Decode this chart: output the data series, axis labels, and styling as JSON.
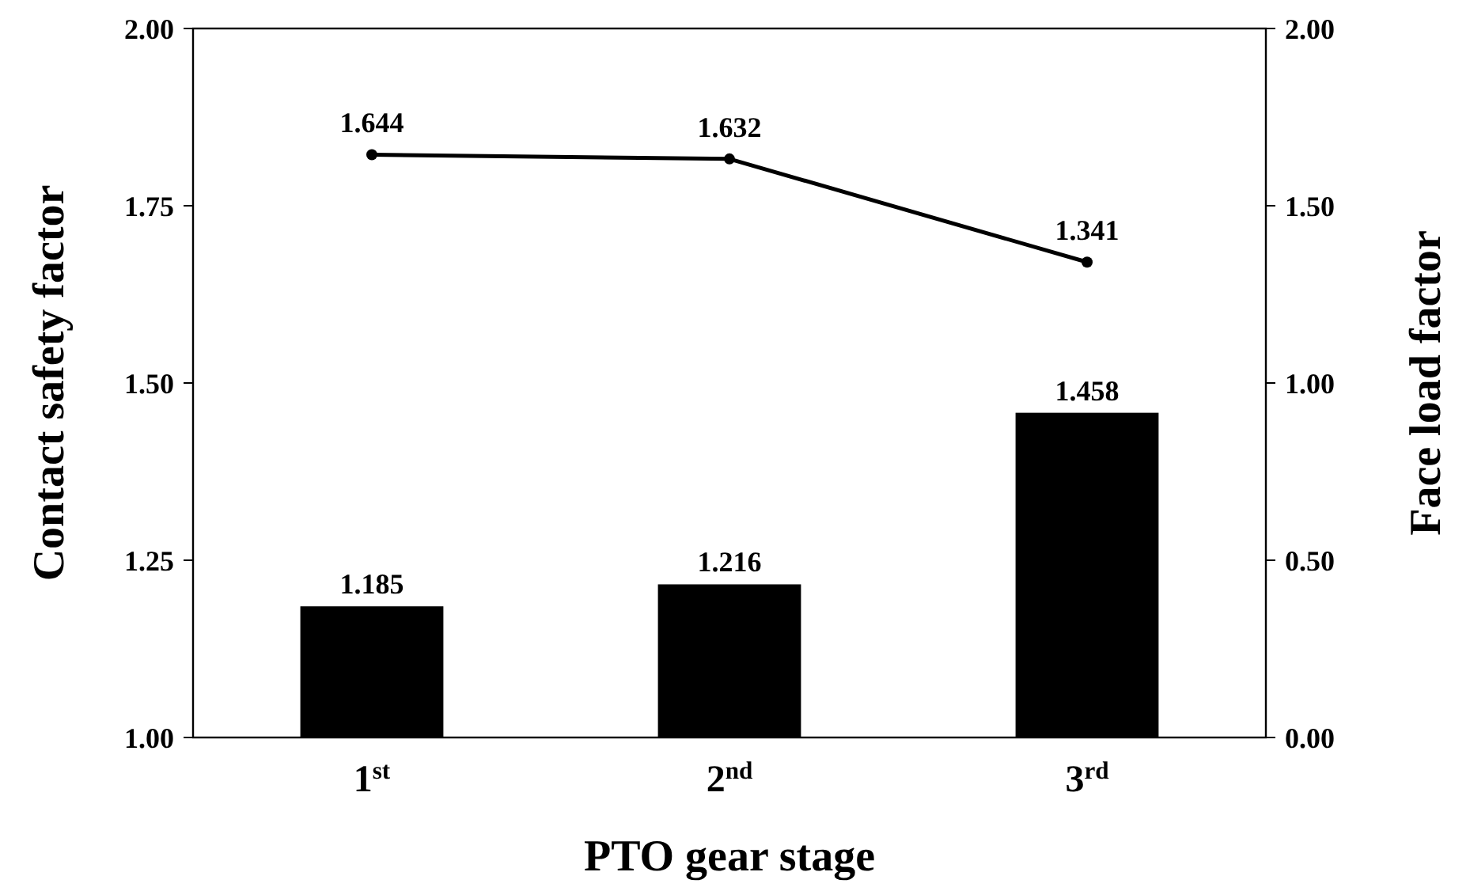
{
  "chart_data": {
    "type": "bar",
    "xlabel": "PTO gear stage",
    "ylabel": "Contact safety factor",
    "y2label": "Face load factor",
    "categories": [
      "1$^{st}$",
      "2$^{nd}$",
      "3$^{rd}$"
    ],
    "series": [
      {
        "color": "#000000",
        "values": [
          1.185,
          1.216,
          1.458
        ]
      },
      {
        "type": "line",
        "axis": "y2",
        "color": "#000000",
        "marker": "circle",
        "line_style": "solid",
        "values": [
          1.644,
          1.632,
          1.341
        ]
      }
    ],
    "ylim": [
      1,
      2
    ],
    "yticks": [
      {
        "value": 1,
        "label": "1.00"
      },
      {
        "value": 1.25,
        "label": "1.25"
      },
      {
        "value": 1.5,
        "label": "1.50"
      },
      {
        "value": 1.75,
        "label": "1.75"
      },
      {
        "value": 2,
        "label": "2.00"
      }
    ],
    "y2lim": [
      0,
      2
    ],
    "y2ticks": [
      {
        "value": 0,
        "label": "0.00"
      },
      {
        "value": 0.5,
        "label": "0.50"
      },
      {
        "value": 1,
        "label": "1.00"
      },
      {
        "value": 1.5,
        "label": "1.50"
      },
      {
        "value": 2,
        "label": "2.00"
      }
    ],
    "data_labels": true,
    "grid": false
  }
}
